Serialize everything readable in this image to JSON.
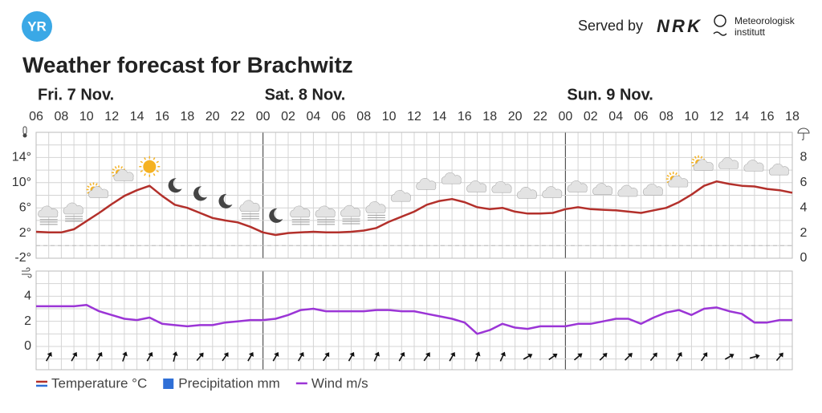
{
  "header": {
    "logo": "YR",
    "served_by": "Served by",
    "nrk": "NRK",
    "met_line1": "Meteorologisk",
    "met_line2": "institutt"
  },
  "chart_data": [
    {
      "type": "line",
      "title": "Weather forecast for Brachwitz",
      "days": [
        "Fri. 7 Nov.",
        "Sat. 8 Nov.",
        "Sun. 9 Nov."
      ],
      "categories": [
        "06",
        null,
        "08",
        null,
        "10",
        null,
        "12",
        null,
        "14",
        null,
        "16",
        null,
        "18",
        null,
        "20",
        null,
        "22",
        null,
        "00",
        null,
        "02",
        null,
        "04",
        null,
        "06",
        null,
        "08",
        null,
        "10",
        null,
        "12",
        null,
        "14",
        null,
        "16",
        null,
        "18",
        null,
        "20",
        null,
        "22",
        null,
        "00",
        null,
        "02",
        null,
        "04",
        null,
        "06",
        null,
        "08",
        null,
        "10",
        null,
        "12",
        null,
        "14",
        null,
        "16",
        null,
        "18"
      ],
      "ylim": [
        -2,
        18
      ],
      "yticks": [
        {
          "value": -2,
          "label": "-2°"
        },
        {
          "value": 2,
          "label": "2°"
        },
        {
          "value": 6,
          "label": "6°"
        },
        {
          "value": 10,
          "label": "10°"
        },
        {
          "value": 14,
          "label": "14°"
        }
      ],
      "y2lim": [
        0,
        10
      ],
      "y2ticks": [
        0,
        2,
        4,
        6,
        8
      ],
      "grid": true,
      "series": [
        {
          "name": "Temperature °C",
          "color": "#b3302b",
          "values": [
            2.2,
            2.1,
            2.1,
            2.6,
            3.9,
            5.2,
            6.6,
            7.9,
            8.8,
            9.5,
            7.9,
            6.5,
            6,
            5.2,
            4.4,
            4,
            3.7,
            3,
            2.1,
            1.7,
            2,
            2.1,
            2.2,
            2.1,
            2.1,
            2.2,
            2.4,
            2.8,
            3.8,
            4.6,
            5.4,
            6.5,
            7.1,
            7.4,
            6.9,
            6.1,
            5.8,
            6,
            5.4,
            5.1,
            5.1,
            5.2,
            5.8,
            6.1,
            5.8,
            5.7,
            5.6,
            5.4,
            5.2,
            5.6,
            6,
            6.9,
            8.1,
            9.5,
            10.2,
            9.8,
            9.5,
            9.4,
            9,
            8.8,
            8.4
          ]
        },
        {
          "name": "Precipitation mm",
          "color": "#2f6fd6",
          "type": "bar",
          "axis": "y2",
          "values": [
            0,
            0,
            0,
            0,
            0,
            0,
            0,
            0,
            0,
            0,
            0,
            0,
            0,
            0,
            0,
            0,
            0,
            0,
            0,
            0,
            0,
            0,
            0,
            0,
            0,
            0,
            0,
            0,
            0,
            0,
            0,
            0,
            0,
            0,
            0,
            0,
            0,
            0,
            0,
            0,
            0,
            0,
            0,
            0,
            0,
            0,
            0,
            0,
            0,
            0,
            0,
            0,
            0,
            0,
            0,
            0,
            0,
            0,
            0,
            0,
            0
          ]
        }
      ]
    },
    {
      "type": "line",
      "ylim": [
        0,
        6
      ],
      "yticks": [
        0,
        2,
        4
      ],
      "grid": true,
      "series": [
        {
          "name": "Wind m/s",
          "color": "#9b35d6",
          "values": [
            3.2,
            3.2,
            3.2,
            3.2,
            3.3,
            2.8,
            2.5,
            2.2,
            2.1,
            2.3,
            1.8,
            1.7,
            1.6,
            1.7,
            1.7,
            1.9,
            2,
            2.1,
            2.1,
            2.2,
            2.5,
            2.9,
            3,
            2.8,
            2.8,
            2.8,
            2.8,
            2.9,
            2.9,
            2.8,
            2.8,
            2.6,
            2.4,
            2.2,
            1.9,
            1,
            1.3,
            1.8,
            1.5,
            1.4,
            1.6,
            1.6,
            1.6,
            1.8,
            1.8,
            2,
            2.2,
            2.2,
            1.8,
            2.3,
            2.7,
            2.9,
            2.5,
            3,
            3.1,
            2.8,
            2.6,
            1.9,
            1.9,
            2.1,
            2.1
          ]
        }
      ]
    }
  ]
}
